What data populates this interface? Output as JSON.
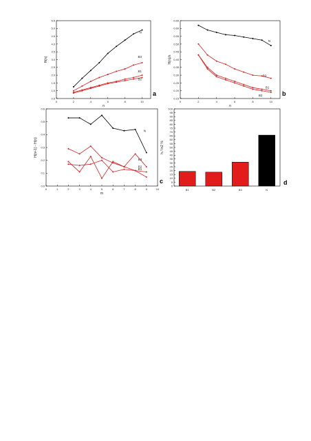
{
  "chart_data": [
    {
      "type": "line",
      "panel_label": "a",
      "xlabel": "n",
      "ylabel": "H(n)",
      "xlim": [
        0,
        11
      ],
      "ylim": [
        0.5,
        5.5
      ],
      "xticks": [
        "0",
        "2",
        "4",
        "6",
        "8",
        "10"
      ],
      "yticks": [
        "0.5",
        "1.0",
        "1.5",
        "2.0",
        "2.5",
        "3.0",
        "3.5",
        "4.0",
        "4.5",
        "5.0",
        "5.5"
      ],
      "x": [
        2,
        3,
        4,
        5,
        6,
        7,
        8,
        9,
        10
      ],
      "series": [
        {
          "name": "N",
          "color": "#000000",
          "values": [
            1.25,
            1.8,
            2.3,
            2.8,
            3.4,
            3.85,
            4.25,
            4.65,
            4.9
          ]
        },
        {
          "name": "B3",
          "color": "#d32020",
          "values": [
            1.0,
            1.3,
            1.6,
            1.85,
            2.05,
            2.25,
            2.4,
            2.65,
            2.8
          ]
        },
        {
          "name": "B1",
          "color": "#d32020",
          "values": [
            0.9,
            1.05,
            1.2,
            1.35,
            1.5,
            1.6,
            1.75,
            1.85,
            2.0
          ]
        },
        {
          "name": "B2",
          "color": "#d32020",
          "values": [
            0.85,
            1.0,
            1.15,
            1.3,
            1.45,
            1.55,
            1.65,
            1.75,
            1.85
          ]
        }
      ]
    },
    {
      "type": "line",
      "panel_label": "b",
      "xlabel": "n",
      "ylabel": "H(n)/n",
      "xlim": [
        0,
        11
      ],
      "ylim": [
        0.15,
        0.65
      ],
      "xticks": [
        "0",
        "2",
        "4",
        "6",
        "8",
        "10"
      ],
      "yticks": [
        "0.15",
        "0.20",
        "0.25",
        "0.30",
        "0.35",
        "0.40",
        "0.45",
        "0.50",
        "0.55",
        "0.60",
        "0.65"
      ],
      "x": [
        2,
        3,
        4,
        5,
        6,
        7,
        8,
        9,
        10
      ],
      "series": [
        {
          "name": "N",
          "color": "#000000",
          "values": [
            0.62,
            0.59,
            0.575,
            0.56,
            0.555,
            0.545,
            0.535,
            0.525,
            0.49
          ]
        },
        {
          "name": "B3",
          "color": "#d32020",
          "values": [
            0.5,
            0.43,
            0.39,
            0.37,
            0.34,
            0.32,
            0.3,
            0.295,
            0.28
          ]
        },
        {
          "name": "B1",
          "color": "#d32020",
          "values": [
            0.43,
            0.35,
            0.3,
            0.28,
            0.26,
            0.24,
            0.22,
            0.21,
            0.2
          ]
        },
        {
          "name": "B2",
          "color": "#d32020",
          "values": [
            0.43,
            0.34,
            0.29,
            0.27,
            0.25,
            0.23,
            0.21,
            0.2,
            0.19
          ]
        }
      ]
    },
    {
      "type": "line",
      "panel_label": "c",
      "xlabel": "m",
      "ylabel": "H(n+1) - H(n)",
      "xlim": [
        0,
        10
      ],
      "ylim": [
        0.0,
        0.6
      ],
      "xticks": [
        "0",
        "1",
        "2",
        "3",
        "4",
        "5",
        "6",
        "7",
        "8",
        "9",
        "10"
      ],
      "yticks": [
        "0.0",
        "0.1",
        "0.2",
        "0.3",
        "0.4",
        "0.5",
        "0.6"
      ],
      "x": [
        2,
        3,
        4,
        5,
        6,
        7,
        8,
        9
      ],
      "series": [
        {
          "name": "N",
          "color": "#000000",
          "values": [
            0.53,
            0.53,
            0.48,
            0.55,
            0.45,
            0.43,
            0.44,
            0.26
          ]
        },
        {
          "name": "B3",
          "color": "#d32020",
          "values": [
            0.29,
            0.25,
            0.31,
            0.22,
            0.18,
            0.15,
            0.25,
            0.15
          ]
        },
        {
          "name": "B1",
          "color": "#d32020",
          "values": [
            0.19,
            0.11,
            0.23,
            0.06,
            0.19,
            0.15,
            0.12,
            0.07
          ]
        },
        {
          "name": "B2",
          "color": "#d32020",
          "values": [
            0.17,
            0.16,
            0.17,
            0.2,
            0.11,
            0.13,
            0.12,
            0.11
          ]
        }
      ]
    },
    {
      "type": "bar",
      "panel_label": "d",
      "ylabel": "h / ln2 %",
      "ylim": [
        0,
        100
      ],
      "yticks": [
        "0",
        "5",
        "10",
        "15",
        "20",
        "25",
        "30",
        "35",
        "40",
        "45",
        "50",
        "55",
        "60",
        "65",
        "70",
        "75",
        "80",
        "85",
        "90",
        "95",
        "100"
      ],
      "categories": [
        "B1",
        "B2",
        "B3",
        "N"
      ],
      "values": [
        19,
        18,
        31,
        66
      ],
      "colors": [
        "#e21b1b",
        "#e21b1b",
        "#e21b1b",
        "#000000"
      ]
    }
  ]
}
